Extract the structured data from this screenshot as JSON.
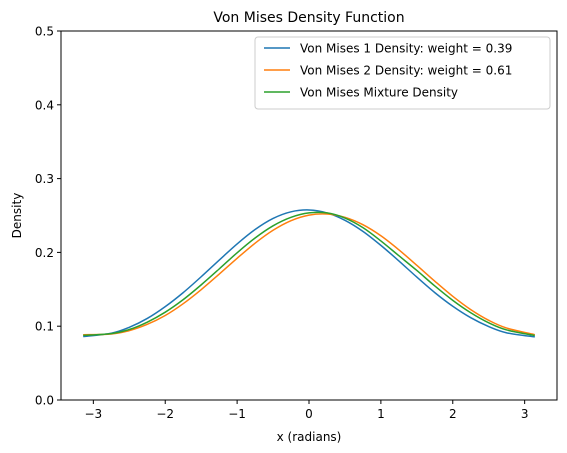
{
  "chart_data": {
    "type": "line",
    "title": "Von Mises Density Function",
    "xlabel": "x (radians)",
    "ylabel": "Density",
    "xlim": [
      -3.45,
      3.45
    ],
    "ylim": [
      0,
      0.5
    ],
    "xticks": [
      -3,
      -2,
      -1,
      0,
      1,
      2,
      3
    ],
    "xtick_labels": [
      "−3",
      "−2",
      "−1",
      "0",
      "1",
      "2",
      "3"
    ],
    "yticks": [
      0,
      0.1,
      0.2,
      0.3,
      0.4,
      0.5
    ],
    "ytick_labels": [
      "0.0",
      "0.1",
      "0.2",
      "0.3",
      "0.4",
      "0.5"
    ],
    "grid": false,
    "legend_position": "top-right",
    "x": [
      -3.1416,
      -2.75,
      -2.5,
      -2.25,
      -2.0,
      -1.75,
      -1.5,
      -1.25,
      -1.0,
      -0.75,
      -0.5,
      -0.25,
      0.0,
      0.25,
      0.5,
      0.75,
      1.0,
      1.25,
      1.5,
      1.75,
      2.0,
      2.25,
      2.5,
      2.75,
      3.1416
    ],
    "series": [
      {
        "name": "Von Mises 1 Density: weight = 0.39",
        "color": "#1f77b4",
        "values": [
          0.086,
          0.0905,
          0.0985,
          0.1105,
          0.1265,
          0.1455,
          0.167,
          0.1895,
          0.2115,
          0.231,
          0.246,
          0.255,
          0.2575,
          0.2535,
          0.2435,
          0.2285,
          0.2095,
          0.1885,
          0.1665,
          0.1455,
          0.127,
          0.1115,
          0.0995,
          0.091,
          0.0855
        ]
      },
      {
        "name": "Von Mises 2 Density: weight = 0.61",
        "color": "#ff7f0e",
        "values": [
          0.0885,
          0.0895,
          0.094,
          0.1025,
          0.1145,
          0.1305,
          0.1495,
          0.1705,
          0.192,
          0.2125,
          0.23,
          0.243,
          0.2505,
          0.252,
          0.2475,
          0.2375,
          0.2225,
          0.2035,
          0.1825,
          0.161,
          0.1405,
          0.1225,
          0.108,
          0.0975,
          0.0885
        ]
      },
      {
        "name": "Von Mises Mixture Density",
        "color": "#2ca02c",
        "values": [
          0.0875,
          0.09,
          0.0955,
          0.1055,
          0.119,
          0.136,
          0.156,
          0.1775,
          0.1995,
          0.2195,
          0.236,
          0.2475,
          0.2535,
          0.2535,
          0.2465,
          0.2335,
          0.2155,
          0.1955,
          0.1755,
          0.1545,
          0.135,
          0.1182,
          0.1046,
          0.0949,
          0.0874
        ]
      }
    ]
  }
}
